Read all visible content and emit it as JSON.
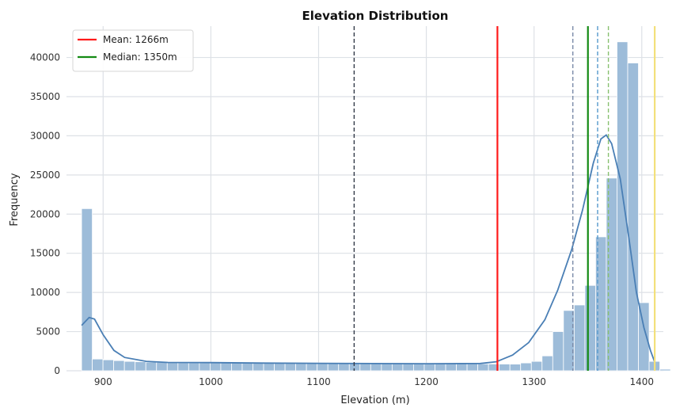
{
  "chart_data": {
    "type": "bar",
    "title": "Elevation Distribution",
    "xlabel": "Elevation (m)",
    "ylabel": "Frequency",
    "xlim": [
      866,
      1420
    ],
    "ylim": [
      0,
      44000
    ],
    "x_ticks": [
      900,
      1000,
      1100,
      1200,
      1300,
      1400
    ],
    "y_ticks": [
      0,
      5000,
      10000,
      15000,
      20000,
      25000,
      30000,
      35000,
      40000
    ],
    "grid": true,
    "legend_position": "top-left",
    "bar_color": "#9dbcd9",
    "bar_edge": "#ffffff",
    "kde_color": "#4a7fb5",
    "bins": {
      "start": 880,
      "width": 9.94,
      "values": [
        20700,
        1500,
        1400,
        1300,
        1200,
        1150,
        1100,
        1080,
        1050,
        1030,
        1020,
        1010,
        1000,
        1020,
        1040,
        1050,
        1060,
        1040,
        1030,
        1020,
        1010,
        1000,
        990,
        980,
        970,
        960,
        960,
        950,
        950,
        960,
        960,
        950,
        940,
        930,
        920,
        900,
        890,
        880,
        870,
        860,
        850,
        1000,
        1200,
        1900,
        5000,
        7700,
        8400,
        10900,
        17100,
        24600,
        42000,
        39300,
        8700,
        1200,
        200
      ]
    },
    "kde_points": [
      [
        880,
        5800
      ],
      [
        887,
        6800
      ],
      [
        892,
        6600
      ],
      [
        900,
        4600
      ],
      [
        910,
        2600
      ],
      [
        920,
        1700
      ],
      [
        940,
        1200
      ],
      [
        960,
        1060
      ],
      [
        1000,
        1040
      ],
      [
        1050,
        980
      ],
      [
        1100,
        950
      ],
      [
        1150,
        920
      ],
      [
        1200,
        900
      ],
      [
        1250,
        930
      ],
      [
        1265,
        1150
      ],
      [
        1280,
        2000
      ],
      [
        1295,
        3600
      ],
      [
        1310,
        6500
      ],
      [
        1322,
        10300
      ],
      [
        1335,
        15500
      ],
      [
        1345,
        20500
      ],
      [
        1355,
        26500
      ],
      [
        1362,
        29600
      ],
      [
        1367,
        30100
      ],
      [
        1372,
        29000
      ],
      [
        1380,
        24500
      ],
      [
        1388,
        17000
      ],
      [
        1395,
        10000
      ],
      [
        1402,
        5500
      ],
      [
        1408,
        2600
      ],
      [
        1412,
        1100
      ]
    ],
    "reference_lines": [
      {
        "name": "Mean: 1266m",
        "x": 1266,
        "color": "#ff1a1a",
        "style": "solid",
        "in_legend": true
      },
      {
        "name": "Median: 1350m",
        "x": 1350,
        "color": "#138a13",
        "style": "solid",
        "in_legend": true
      },
      {
        "name": "",
        "x": 1133,
        "color": "#333a48",
        "style": "dashed",
        "in_legend": false
      },
      {
        "name": "",
        "x": 1336,
        "color": "#7a8aa8",
        "style": "dashed",
        "in_legend": false
      },
      {
        "name": "",
        "x": 1359,
        "color": "#5599cc",
        "style": "dashed",
        "in_legend": false
      },
      {
        "name": "",
        "x": 1369,
        "color": "#88c070",
        "style": "dashed",
        "in_legend": false
      },
      {
        "name": "",
        "x": 1412,
        "color": "#f3e07a",
        "style": "solid",
        "in_legend": false
      }
    ]
  }
}
